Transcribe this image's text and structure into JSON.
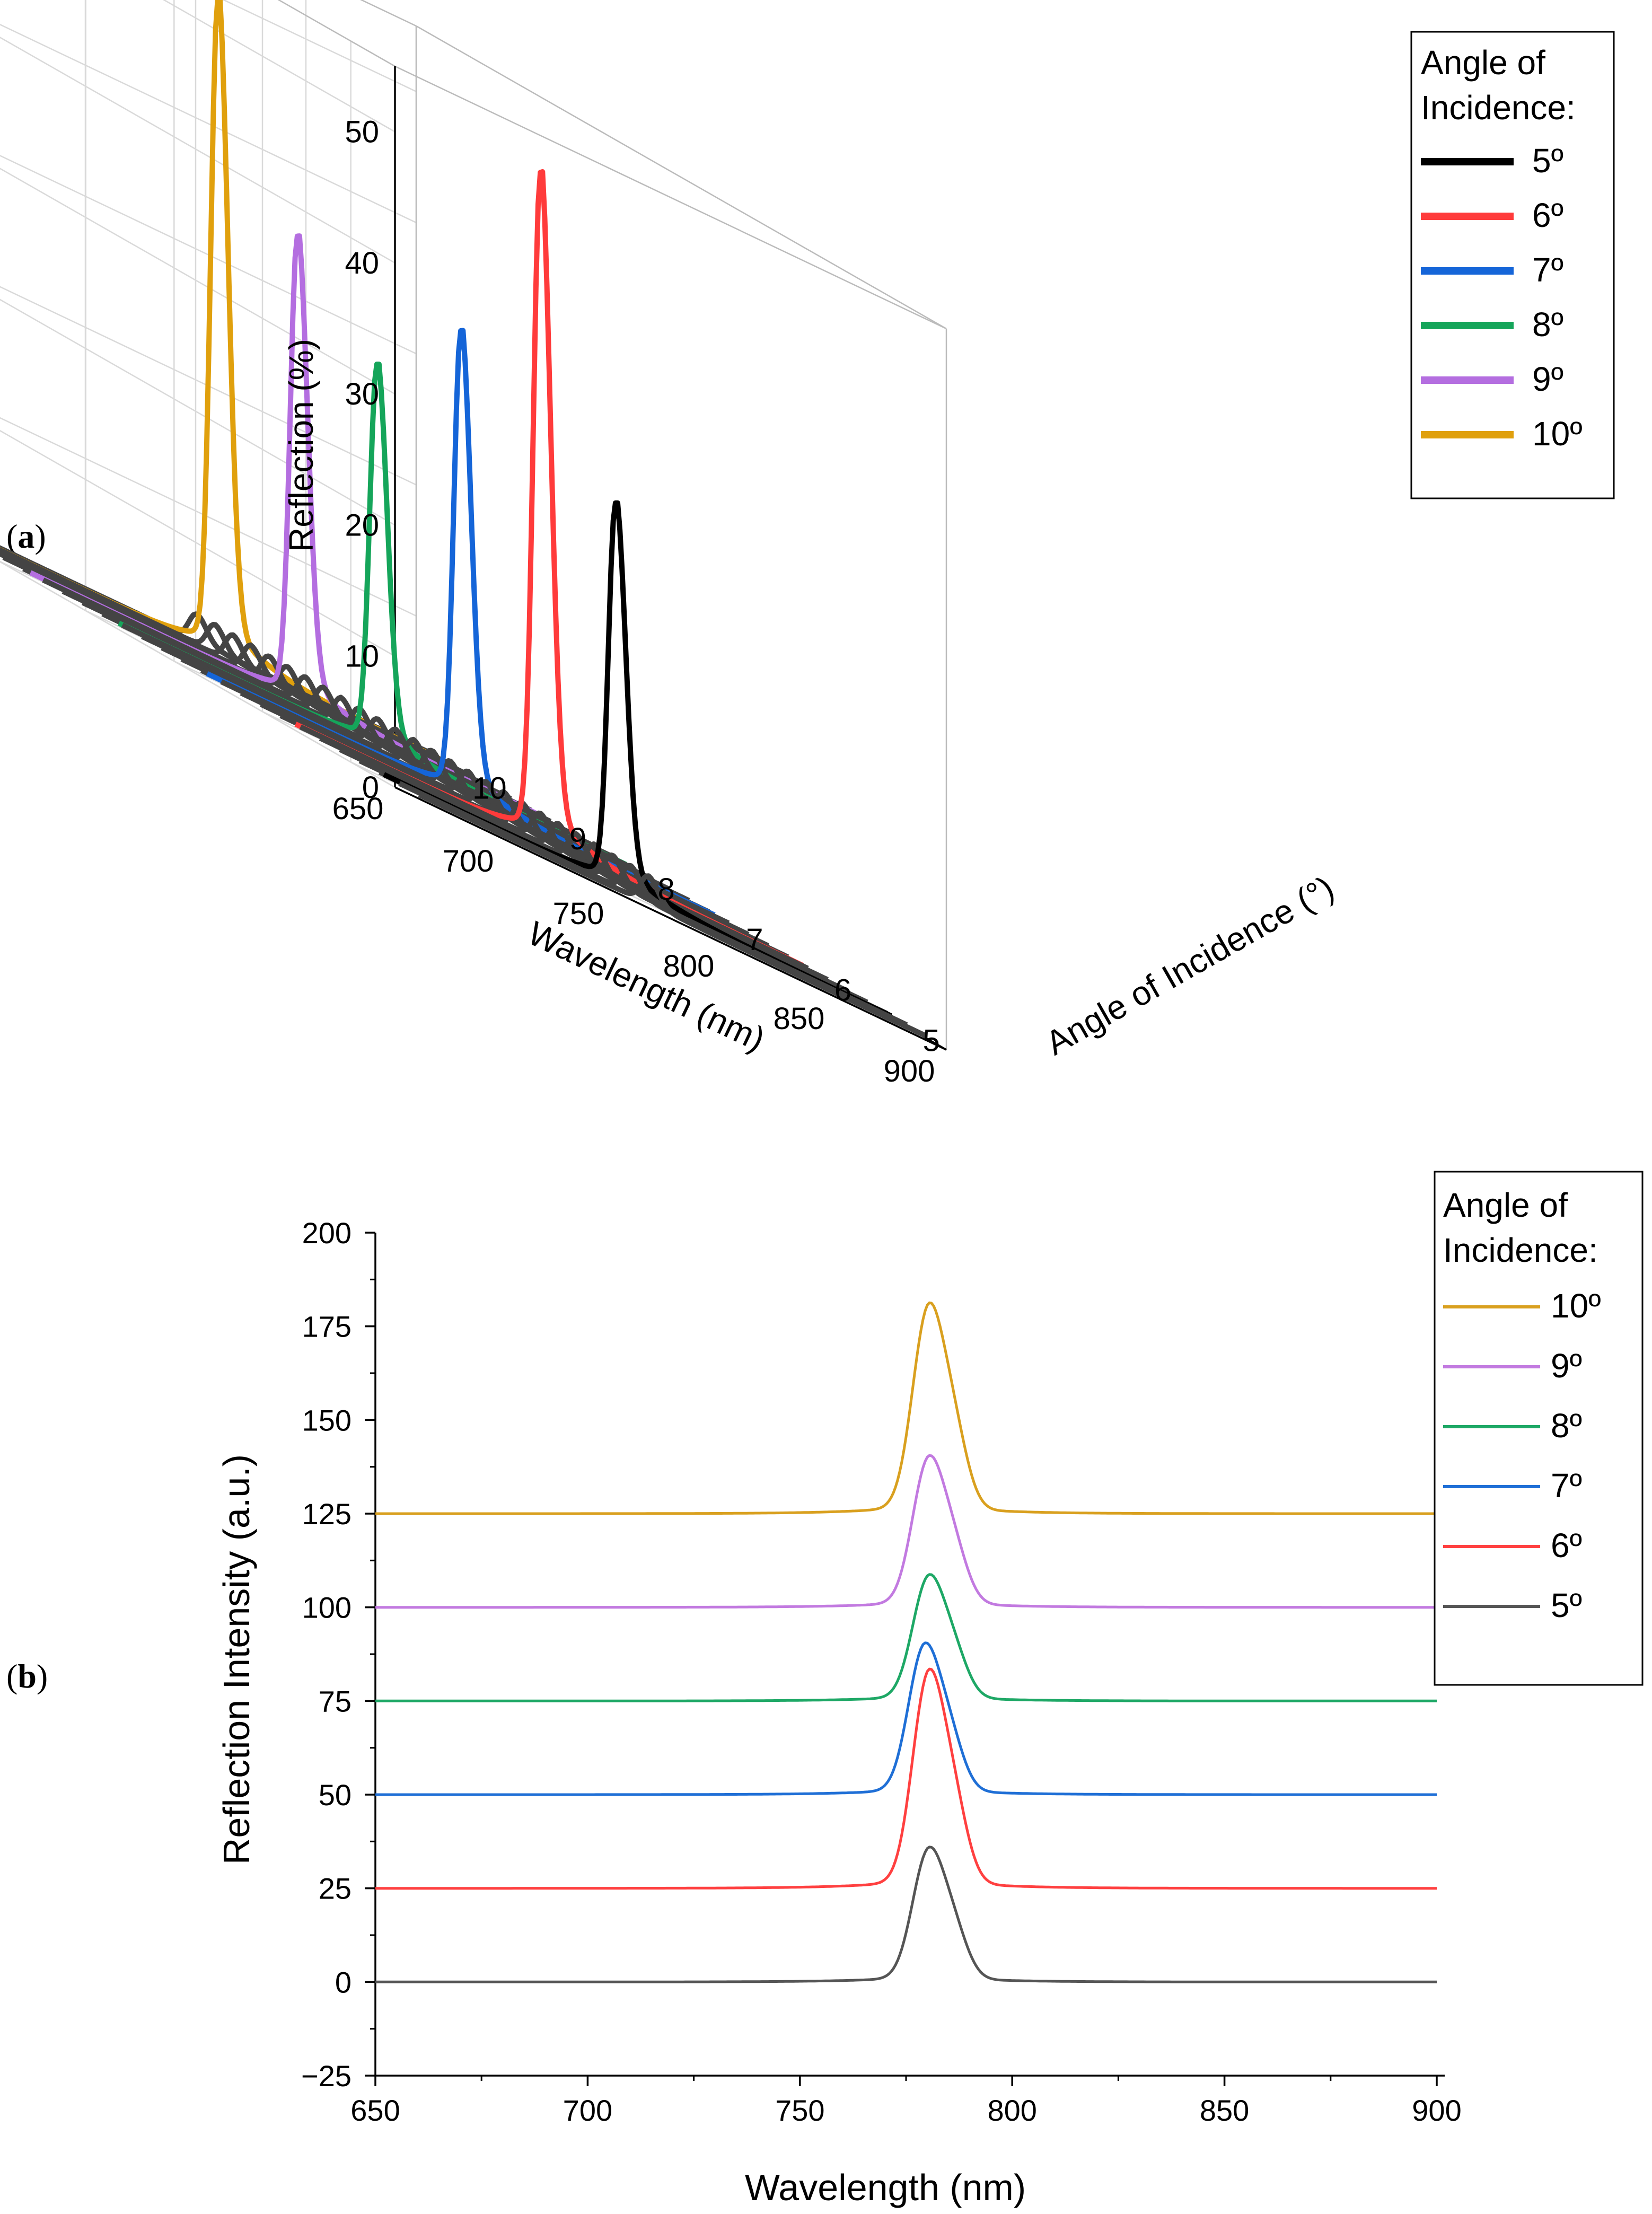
{
  "panel_labels": {
    "a": "a",
    "b": "b"
  },
  "chart_data": [
    {
      "panel": "a",
      "type": "line",
      "view": "3d-waterfall",
      "zlabel": "Reflection (%)",
      "xlabel": "Wavelength (nm)",
      "ylabel": "Angle of Incidence (°)",
      "zlim": [
        0,
        55
      ],
      "xlim": [
        650,
        900
      ],
      "ylim": [
        4.5,
        10.5
      ],
      "zticks": [
        "0",
        "10",
        "20",
        "30",
        "40",
        "50"
      ],
      "xticks": [
        "650",
        "700",
        "750",
        "800",
        "850",
        "900"
      ],
      "yticks": [
        "5",
        "6",
        "7",
        "8",
        "9",
        "10"
      ],
      "legend_title": [
        "Angle of",
        "Incidence:"
      ],
      "legend_position": "top-right",
      "series": [
        {
          "name": "5º",
          "angle": 5,
          "color": "#000000",
          "peak_wavelength": 770,
          "peak": 28
        },
        {
          "name": "6º",
          "angle": 6,
          "color": "#ff3b3b",
          "peak_wavelength": 776,
          "peak": 49
        },
        {
          "name": "7º",
          "angle": 7,
          "color": "#1565d8",
          "peak_wavelength": 780,
          "peak": 34
        },
        {
          "name": "8º",
          "angle": 8,
          "color": "#15a55a",
          "peak_wavelength": 782,
          "peak": 28
        },
        {
          "name": "9º",
          "angle": 9,
          "color": "#b46ee0",
          "peak_wavelength": 786,
          "peak": 34
        },
        {
          "name": "10º",
          "angle": 10,
          "color": "#e0a00d",
          "peak_wavelength": 790,
          "peak": 48
        }
      ],
      "background_traces": {
        "count": 26,
        "angle_range": [
          4.6,
          10.2
        ],
        "color": "#444444",
        "bump_height": 2
      }
    },
    {
      "panel": "b",
      "type": "line",
      "xlabel": "Wavelength (nm)",
      "ylabel": "Reflection Intensity (a.u.)",
      "xlim": [
        650,
        900
      ],
      "ylim": [
        -25,
        200
      ],
      "xticks": [
        "650",
        "700",
        "750",
        "800",
        "850",
        "900"
      ],
      "yticks": [
        "−25",
        "0",
        "25",
        "50",
        "75",
        "100",
        "125",
        "150",
        "175",
        "200"
      ],
      "legend_title": [
        "Angle of",
        "Incidence:"
      ],
      "legend_position": "top-right",
      "series": [
        {
          "name": "10º",
          "color": "#d9a01f",
          "baseline": 125,
          "peak": 50,
          "peak_wavelength": 780
        },
        {
          "name": "9º",
          "color": "#c27ae0",
          "baseline": 100,
          "peak": 36,
          "peak_wavelength": 780
        },
        {
          "name": "8º",
          "color": "#1ea866",
          "baseline": 75,
          "peak": 30,
          "peak_wavelength": 780
        },
        {
          "name": "7º",
          "color": "#1f6fd6",
          "baseline": 50,
          "peak": 36,
          "peak_wavelength": 779
        },
        {
          "name": "6º",
          "color": "#ff4040",
          "baseline": 25,
          "peak": 52,
          "peak_wavelength": 780
        },
        {
          "name": "5º",
          "color": "#555555",
          "baseline": 0,
          "peak": 32,
          "peak_wavelength": 780
        }
      ]
    }
  ]
}
